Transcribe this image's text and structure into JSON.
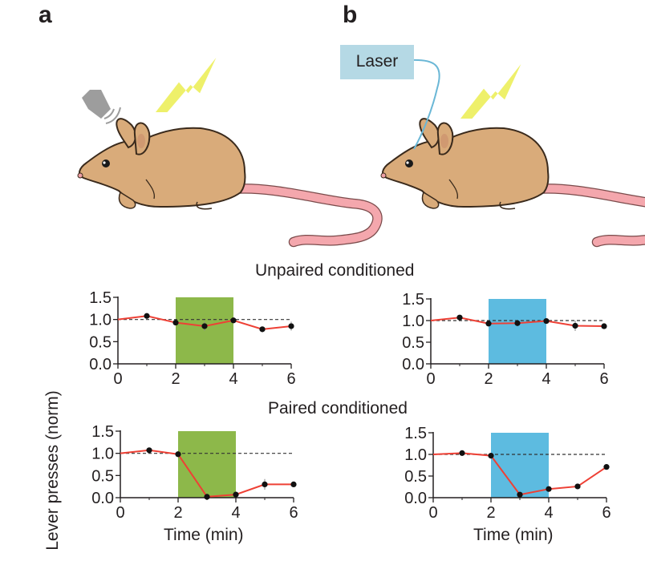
{
  "panel_labels": {
    "a": "a",
    "b": "b"
  },
  "laser_box": {
    "label": "Laser"
  },
  "rows": {
    "unpaired_title": "Unpaired conditioned",
    "paired_title": "Paired conditioned"
  },
  "axes": {
    "ylabel": "Lever presses (norm)",
    "xlabel": "Time (min)"
  },
  "colors": {
    "line": "#ee4035",
    "marker": "#111111",
    "tone_block": "#8db84a",
    "laser_block": "#5dbbe0",
    "mouse_body": "#d9ab7a",
    "mouse_outline": "#3a2a1c",
    "tail": "#f4a7ad",
    "lightning": "#eef06a",
    "speaker": "#9d9d9d",
    "laser_box_fill": "#b5d9e5",
    "fiber": "#6ab7d6"
  },
  "icons": [
    "speaker-icon",
    "lightning-icon",
    "mouse-illustration",
    "laser-box",
    "optic-fiber"
  ],
  "chart_data": [
    {
      "type": "line",
      "panel": "a",
      "row": "Unpaired conditioned",
      "x": [
        0,
        1,
        2,
        3,
        4,
        5,
        6
      ],
      "y": [
        1.0,
        1.08,
        0.93,
        0.85,
        0.98,
        0.78,
        0.85
      ],
      "err": [
        0,
        0.04,
        0.03,
        0.1,
        0.04,
        0.03,
        0.1
      ],
      "xlim": [
        0,
        6
      ],
      "ylim": [
        0,
        1.5
      ],
      "xticks": [
        "0",
        "2",
        "4",
        "6"
      ],
      "yticks": [
        "0.0",
        "0.5",
        "1.0",
        "1.5"
      ],
      "baseline": 1.0,
      "shaded": [
        2,
        4
      ],
      "shade_color": "#8db84a"
    },
    {
      "type": "line",
      "panel": "b",
      "row": "Unpaired conditioned",
      "x": [
        0,
        1,
        2,
        3,
        4,
        5,
        6
      ],
      "y": [
        1.0,
        1.07,
        0.93,
        0.94,
        0.99,
        0.88,
        0.87
      ],
      "err": [
        0,
        0.04,
        0.03,
        0.04,
        0.04,
        0.12,
        0.06
      ],
      "xlim": [
        0,
        6
      ],
      "ylim": [
        0,
        1.5
      ],
      "xticks": [
        "0",
        "2",
        "4",
        "6"
      ],
      "yticks": [
        "0.0",
        "0.5",
        "1.0",
        "1.5"
      ],
      "baseline": 1.0,
      "shaded": [
        2,
        4
      ],
      "shade_color": "#5dbbe0"
    },
    {
      "type": "line",
      "panel": "a",
      "row": "Paired conditioned",
      "x": [
        0,
        1,
        2,
        3,
        4,
        5,
        6
      ],
      "y": [
        1.0,
        1.07,
        0.98,
        0.02,
        0.07,
        0.3,
        0.3
      ],
      "err": [
        0,
        0.05,
        0.03,
        0.02,
        0.03,
        0.12,
        0.05
      ],
      "xlim": [
        0,
        6
      ],
      "ylim": [
        0,
        1.5
      ],
      "xticks": [
        "0",
        "2",
        "4",
        "6"
      ],
      "yticks": [
        "0.0",
        "0.5",
        "1.0",
        "1.5"
      ],
      "baseline": 1.0,
      "shaded": [
        2,
        4
      ],
      "shade_color": "#8db84a"
    },
    {
      "type": "line",
      "panel": "b",
      "row": "Paired conditioned",
      "x": [
        0,
        1,
        2,
        3,
        4,
        5,
        6
      ],
      "y": [
        1.0,
        1.03,
        0.97,
        0.07,
        0.2,
        0.26,
        0.71
      ],
      "err": [
        0,
        0.03,
        0.03,
        0.03,
        0.03,
        0.03,
        0.04
      ],
      "xlim": [
        0,
        6
      ],
      "ylim": [
        0,
        1.5
      ],
      "xticks": [
        "0",
        "2",
        "4",
        "6"
      ],
      "yticks": [
        "0.0",
        "0.5",
        "1.0",
        "1.5"
      ],
      "baseline": 1.0,
      "shaded": [
        2,
        4
      ],
      "shade_color": "#5dbbe0"
    }
  ]
}
